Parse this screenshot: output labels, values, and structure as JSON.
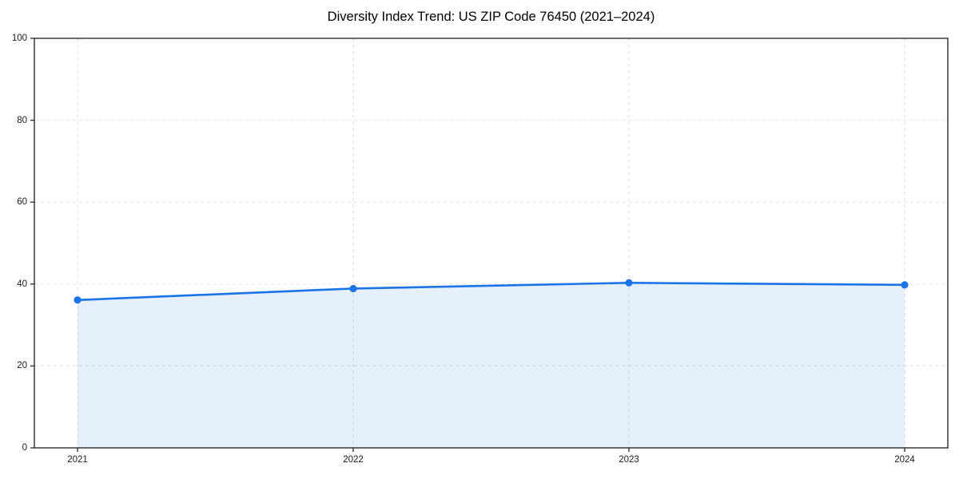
{
  "chart_data": {
    "type": "area",
    "title": "Diversity Index Trend: US ZIP Code 76450 (2021–2024)",
    "xlabel": "",
    "ylabel": "",
    "x": [
      2021,
      2022,
      2023,
      2024
    ],
    "xticks": [
      "2021",
      "2022",
      "2023",
      "2024"
    ],
    "series": [
      {
        "name": "Diversity Index",
        "values": [
          36.1,
          38.9,
          40.3,
          39.8
        ]
      }
    ],
    "ylim": [
      0,
      100
    ],
    "yticks": [
      0,
      20,
      40,
      60,
      80,
      100
    ],
    "grid": true,
    "grid_style": "dashed",
    "legend_position": "none",
    "colors": {
      "line": "#1a73e8",
      "fill": "#1a73e8",
      "fill_opacity": 0.11,
      "grid": "#dddddd",
      "spine": "#1a1a1a",
      "text": "#000000",
      "background": "#ffffff"
    }
  }
}
